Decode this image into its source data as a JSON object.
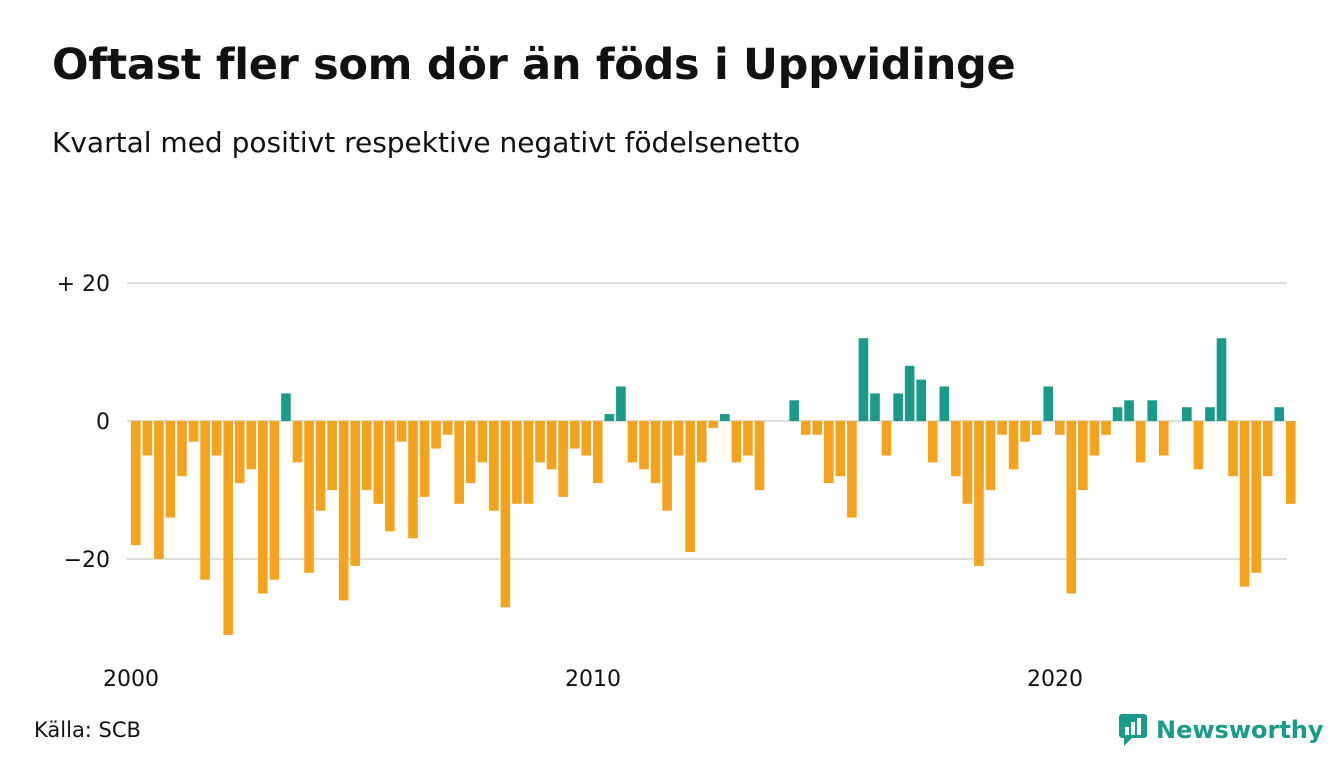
{
  "header": {
    "title": "Oftast fler som dör än föds i Uppvidinge",
    "subtitle": "Kvartal med positivt respektive negativt födelsenetto"
  },
  "footer": {
    "source": "Källa: SCB",
    "brand": "Newsworthy"
  },
  "colors": {
    "positive": "#1a9a89",
    "negative": "#f5a31f",
    "grid": "#dddddd",
    "brand": "#1a9a89"
  },
  "chart_data": {
    "type": "bar",
    "title": "Oftast fler som dör än föds i Uppvidinge",
    "subtitle": "Kvartal med positivt respektive negativt födelsenetto",
    "xlabel": "",
    "ylabel": "",
    "x_start": "2000Q1",
    "x_ticks": [
      "2000",
      "2010",
      "2020"
    ],
    "y_ticks": [
      {
        "value": 20,
        "label": "+ 20"
      },
      {
        "value": 0,
        "label": "0"
      },
      {
        "value": -20,
        "label": "−20"
      }
    ],
    "ylim": [
      -32,
      20
    ],
    "grid": true,
    "values": [
      -18,
      -5,
      -20,
      -14,
      -8,
      -3,
      -23,
      -5,
      -31,
      -9,
      -7,
      -25,
      -23,
      4,
      -6,
      -22,
      -13,
      -10,
      -26,
      -21,
      -10,
      -12,
      -16,
      -3,
      -17,
      -11,
      -4,
      -2,
      -12,
      -9,
      -6,
      -13,
      -27,
      -12,
      -12,
      -6,
      -7,
      -11,
      -4,
      -5,
      -9,
      1,
      5,
      -6,
      -7,
      -9,
      -13,
      -5,
      -19,
      -6,
      -1,
      1,
      -6,
      -5,
      -10,
      0,
      0,
      3,
      -2,
      -2,
      -9,
      -8,
      -14,
      12,
      4,
      -5,
      4,
      8,
      6,
      -6,
      5,
      -8,
      -12,
      -21,
      -10,
      -2,
      -7,
      -3,
      -2,
      5,
      -2,
      -25,
      -10,
      -5,
      -2,
      2,
      3,
      -6,
      3,
      -5,
      0,
      2,
      -7,
      2,
      12,
      -8,
      -24,
      -22,
      -8,
      2,
      -12
    ]
  }
}
